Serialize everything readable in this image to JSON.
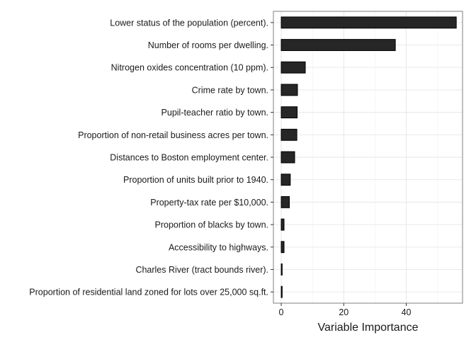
{
  "chart_data": {
    "type": "bar",
    "orientation": "horizontal",
    "xlabel": "Variable Importance",
    "ylabel": "",
    "xlim": [
      -2.5,
      58
    ],
    "x_ticks": [
      0,
      20,
      40
    ],
    "grid": true,
    "categories": [
      "Lower status of the population (percent).",
      "Number of rooms per dwelling.",
      "Nitrogen oxides concentration (10 ppm).",
      "Crime rate by town.",
      "Pupil-teacher ratio by town.",
      "Proportion of non-retail business acres per town.",
      "Distances to Boston employment center.",
      "Proportion of units built prior to 1940.",
      "Property-tax rate per $10,000.",
      "Proportion of blacks by town.",
      "Accessibility to highways.",
      "Charles River (tract bounds river).",
      "Proportion of residential land zoned for lots over 25,000 sq.ft."
    ],
    "values": [
      56,
      36.5,
      7.7,
      5.2,
      5.1,
      5.0,
      4.3,
      2.9,
      2.6,
      0.9,
      0.9,
      0.3,
      0.3
    ],
    "colors": {
      "bar_fill": "#262626",
      "bar_stroke": "#000000"
    }
  }
}
